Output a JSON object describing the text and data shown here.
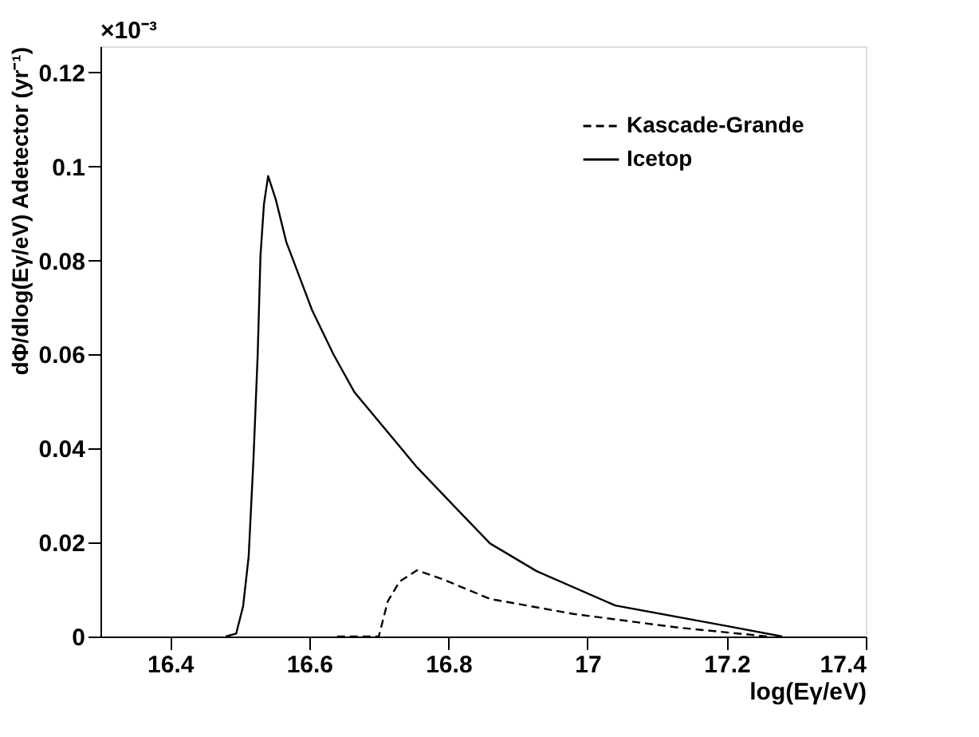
{
  "chart_data": {
    "type": "line",
    "xlabel": "log(Eγ/eV)",
    "ylabel": "dΦ/dlog(Eγ/eV) Adetector (yr⁻¹)",
    "annotations": [
      "×10⁻³"
    ],
    "xlim": [
      16.3,
      17.4
    ],
    "xticks": [
      16.4,
      16.6,
      16.8,
      17,
      17.2,
      17.4
    ],
    "ylim": [
      0,
      0.1256
    ],
    "yticks": [
      0,
      0.02,
      0.04,
      0.06,
      0.08,
      0.1,
      0.12
    ],
    "grid": false,
    "legend": "top right",
    "marker": "none",
    "series": [
      {
        "name": "Kascade-Grande",
        "color": "#000000",
        "line_style": "dashed",
        "x": [
          16.64,
          16.7,
          16.713,
          16.73,
          16.755,
          16.79,
          16.86,
          16.98,
          17.13,
          17.26
        ],
        "values": [
          0,
          0,
          0.0075,
          0.0117,
          0.0141,
          0.0123,
          0.008,
          0.0048,
          0.0019,
          0
        ]
      },
      {
        "name": "Icetop",
        "color": "#000000",
        "line_style": "solid",
        "x": [
          16.48,
          16.495,
          16.505,
          16.513,
          16.52,
          16.526,
          16.53,
          16.535,
          16.541,
          16.552,
          16.567,
          16.59,
          16.604,
          16.635,
          16.665,
          16.71,
          16.755,
          16.815,
          16.86,
          16.927,
          17.04,
          17.205,
          17.28
        ],
        "values": [
          0,
          0.0006,
          0.0064,
          0.017,
          0.038,
          0.06,
          0.081,
          0.092,
          0.098,
          0.093,
          0.084,
          0.075,
          0.0695,
          0.06,
          0.052,
          0.044,
          0.036,
          0.0267,
          0.0198,
          0.0139,
          0.0066,
          0.0021,
          0
        ]
      }
    ]
  }
}
